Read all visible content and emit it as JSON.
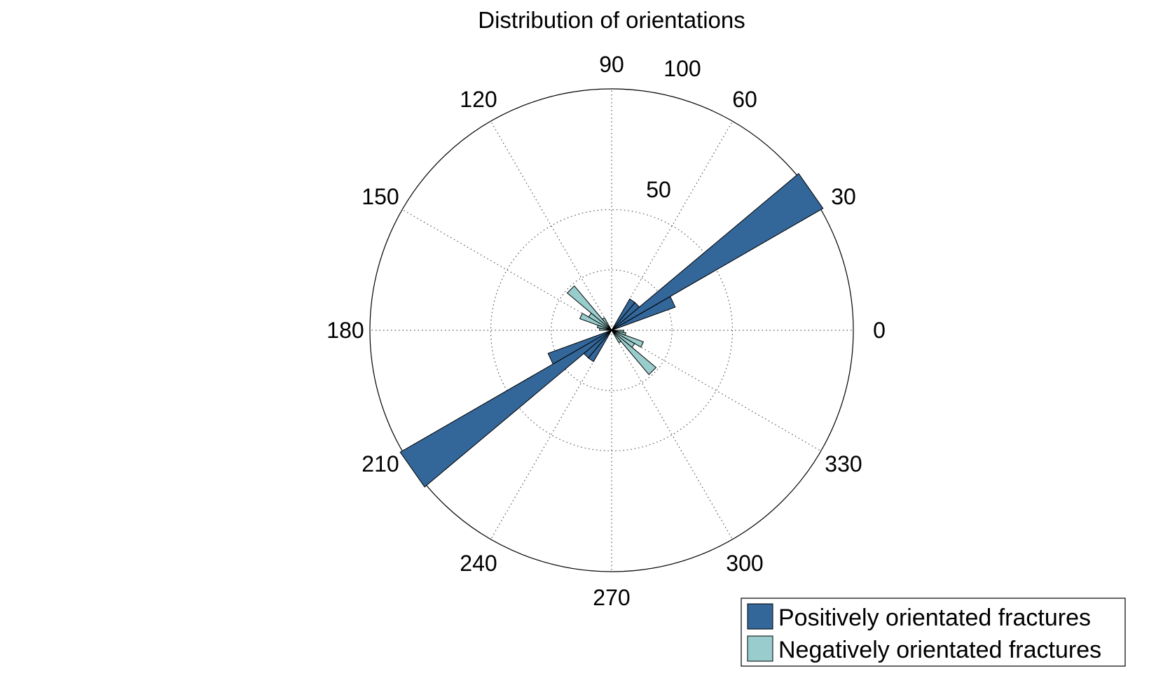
{
  "chart_data": {
    "type": "rose",
    "title": "Distribution of orientations",
    "angle_ticks": [
      "0",
      "30",
      "60",
      "100",
      "90",
      "120",
      "150",
      "180",
      "210",
      "240",
      "270",
      "300",
      "330"
    ],
    "radial_ticks": [
      "50"
    ],
    "r_max": 100,
    "legend_position": "bottom-right",
    "series": [
      {
        "name": "Positively orientated fractures",
        "color": "#336699",
        "bins": [
          {
            "from": 20,
            "to": 30,
            "value": 28
          },
          {
            "from": 30,
            "to": 40,
            "value": 101
          },
          {
            "from": 40,
            "to": 50,
            "value": 15
          },
          {
            "from": 50,
            "to": 60,
            "value": 15
          },
          {
            "from": 200,
            "to": 210,
            "value": 28
          },
          {
            "from": 210,
            "to": 220,
            "value": 101
          },
          {
            "from": 220,
            "to": 230,
            "value": 15
          },
          {
            "from": 230,
            "to": 240,
            "value": 15
          }
        ]
      },
      {
        "name": "Negatively orientated fractures",
        "color": "#99cccc",
        "bins": [
          {
            "from": 120,
            "to": 130,
            "value": 6
          },
          {
            "from": 130,
            "to": 140,
            "value": 24
          },
          {
            "from": 140,
            "to": 150,
            "value": 11
          },
          {
            "from": 150,
            "to": 160,
            "value": 14
          },
          {
            "from": 160,
            "to": 170,
            "value": 6
          },
          {
            "from": 170,
            "to": 180,
            "value": 5
          },
          {
            "from": 300,
            "to": 310,
            "value": 6
          },
          {
            "from": 310,
            "to": 320,
            "value": 24
          },
          {
            "from": 320,
            "to": 330,
            "value": 11
          },
          {
            "from": 330,
            "to": 340,
            "value": 14
          },
          {
            "from": 340,
            "to": 350,
            "value": 6
          },
          {
            "from": 350,
            "to": 360,
            "value": 5
          }
        ]
      }
    ]
  }
}
